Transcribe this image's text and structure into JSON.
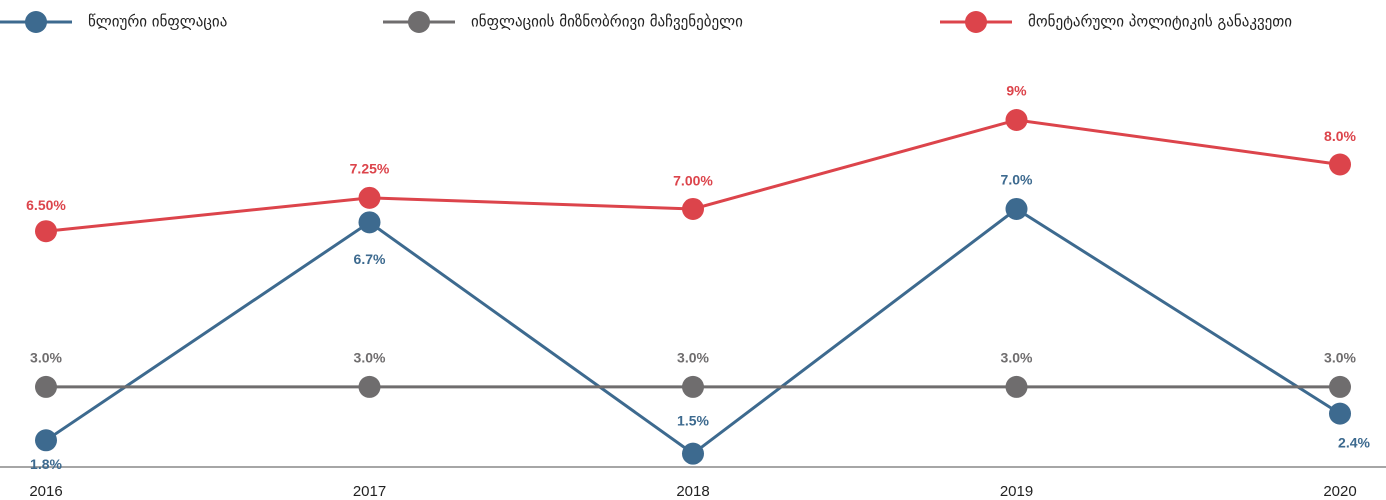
{
  "chart_data": {
    "type": "line",
    "categories": [
      "2016",
      "2017",
      "2018",
      "2019",
      "2020"
    ],
    "series": [
      {
        "name": "წლიური ინფლაცია",
        "color": "#3d6a8f",
        "values": [
          1.8,
          6.7,
          1.5,
          7.0,
          2.4
        ],
        "value_labels": [
          "1.8%",
          "6.7%",
          "1.5%",
          "7.0%",
          "2.4%"
        ]
      },
      {
        "name": "ინფლაციის მიზნობრივი მაჩვენებელი",
        "color": "#6f6d6e",
        "values": [
          3.0,
          3.0,
          3.0,
          3.0,
          3.0
        ],
        "value_labels": [
          "3.0%",
          "3.0%",
          "3.0%",
          "3.0%",
          "3.0%"
        ]
      },
      {
        "name": "მონეტარული პოლიტიკის განაკვეთი",
        "color": "#dc444b",
        "values": [
          6.5,
          7.25,
          7.0,
          9,
          8.0
        ],
        "value_labels": [
          "6.50%",
          "7.25%",
          "7.00%",
          "9%",
          "8.0%"
        ]
      }
    ],
    "ylim": [
      1.2,
      10
    ],
    "legend": "top"
  }
}
